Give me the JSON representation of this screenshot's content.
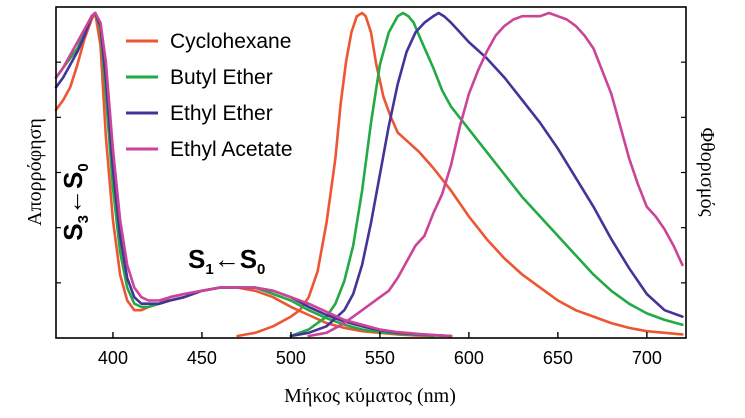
{
  "chart_data": {
    "type": "line",
    "xlabel": "Μήκος κύματος (nm)",
    "ylabel_left": "Απορρόφηση",
    "ylabel_right": "Φθορισμός",
    "xlim": [
      368,
      722
    ],
    "ylim": [
      0,
      1.0
    ],
    "x_ticks": [
      400,
      450,
      500,
      550,
      600,
      650,
      700
    ],
    "grid": false,
    "legend_position": "top-left",
    "annotations": {
      "s3": {
        "main": "S",
        "sub": "3",
        "arrow": "←",
        "main2": "S",
        "sub2": "0"
      },
      "s1": {
        "main": "S",
        "sub": "1",
        "arrow": "←",
        "main2": "S",
        "sub2": "0"
      }
    },
    "series": [
      {
        "name": "Cyclohexane",
        "color": "#ee5533",
        "absorption": {
          "x": [
            368,
            372,
            376,
            380,
            384,
            388,
            390,
            393,
            396,
            400,
            404,
            408,
            412,
            416,
            420,
            426,
            432,
            440,
            450,
            460,
            470,
            480,
            490,
            500,
            510,
            520,
            530,
            540,
            550,
            560,
            570,
            580
          ],
          "y": [
            0.7,
            0.73,
            0.77,
            0.84,
            0.92,
            0.98,
            1.0,
            0.9,
            0.62,
            0.36,
            0.19,
            0.11,
            0.08,
            0.08,
            0.09,
            0.1,
            0.12,
            0.13,
            0.14,
            0.15,
            0.15,
            0.14,
            0.12,
            0.09,
            0.065,
            0.04,
            0.025,
            0.015,
            0.01,
            0.005,
            0.002,
            0.0
          ]
        },
        "fluorescence": {
          "x": [
            470,
            480,
            490,
            500,
            505,
            510,
            515,
            520,
            525,
            528,
            531,
            534,
            537,
            540,
            542,
            545,
            548,
            552,
            556,
            560,
            566,
            572,
            580,
            590,
            600,
            610,
            620,
            630,
            640,
            650,
            660,
            670,
            680,
            690,
            700,
            710,
            720
          ],
          "y": [
            0.0,
            0.01,
            0.03,
            0.06,
            0.08,
            0.12,
            0.2,
            0.35,
            0.55,
            0.72,
            0.85,
            0.94,
            0.99,
            1.0,
            0.99,
            0.94,
            0.84,
            0.74,
            0.68,
            0.63,
            0.6,
            0.57,
            0.52,
            0.45,
            0.37,
            0.3,
            0.24,
            0.19,
            0.15,
            0.11,
            0.08,
            0.06,
            0.04,
            0.025,
            0.015,
            0.01,
            0.005
          ]
        }
      },
      {
        "name": "Butyl Ether",
        "color": "#22aa44",
        "absorption": {
          "x": [
            368,
            372,
            376,
            380,
            384,
            388,
            390,
            393,
            396,
            400,
            404,
            408,
            412,
            416,
            420,
            426,
            432,
            440,
            450,
            460,
            470,
            480,
            490,
            500,
            510,
            520,
            530,
            540,
            550,
            560,
            570,
            580,
            590
          ],
          "y": [
            0.8,
            0.83,
            0.86,
            0.89,
            0.94,
            0.99,
            1.0,
            0.95,
            0.75,
            0.46,
            0.26,
            0.15,
            0.1,
            0.09,
            0.09,
            0.1,
            0.11,
            0.12,
            0.14,
            0.15,
            0.15,
            0.15,
            0.13,
            0.11,
            0.08,
            0.055,
            0.035,
            0.02,
            0.012,
            0.007,
            0.004,
            0.002,
            0.0
          ]
        },
        "fluorescence": {
          "x": [
            500,
            510,
            520,
            525,
            530,
            535,
            540,
            545,
            550,
            555,
            560,
            563,
            566,
            569,
            572,
            576,
            580,
            585,
            590,
            600,
            610,
            620,
            630,
            640,
            650,
            660,
            670,
            680,
            690,
            700,
            710,
            720
          ],
          "y": [
            0.0,
            0.02,
            0.06,
            0.1,
            0.17,
            0.28,
            0.45,
            0.66,
            0.84,
            0.94,
            0.99,
            1.0,
            0.99,
            0.97,
            0.93,
            0.88,
            0.83,
            0.76,
            0.71,
            0.64,
            0.57,
            0.5,
            0.43,
            0.37,
            0.31,
            0.25,
            0.19,
            0.14,
            0.1,
            0.07,
            0.05,
            0.035
          ]
        }
      },
      {
        "name": "Ethyl Ether",
        "color": "#443399",
        "absorption": {
          "x": [
            368,
            372,
            376,
            380,
            384,
            388,
            390,
            393,
            396,
            400,
            404,
            408,
            412,
            416,
            420,
            426,
            432,
            440,
            450,
            460,
            470,
            480,
            490,
            500,
            510,
            520,
            530,
            540,
            550,
            560,
            570,
            580,
            590
          ],
          "y": [
            0.77,
            0.8,
            0.84,
            0.88,
            0.93,
            0.99,
            1.0,
            0.96,
            0.8,
            0.52,
            0.31,
            0.18,
            0.12,
            0.1,
            0.1,
            0.1,
            0.11,
            0.12,
            0.14,
            0.15,
            0.15,
            0.15,
            0.14,
            0.12,
            0.09,
            0.065,
            0.045,
            0.03,
            0.018,
            0.01,
            0.006,
            0.003,
            0.0
          ]
        },
        "fluorescence": {
          "x": [
            500,
            510,
            520,
            530,
            535,
            540,
            545,
            550,
            555,
            560,
            565,
            570,
            575,
            580,
            583,
            586,
            590,
            595,
            600,
            610,
            620,
            630,
            640,
            650,
            660,
            670,
            680,
            690,
            700,
            710,
            720
          ],
          "y": [
            0.0,
            0.01,
            0.03,
            0.08,
            0.13,
            0.22,
            0.35,
            0.5,
            0.65,
            0.78,
            0.88,
            0.94,
            0.97,
            0.99,
            1.0,
            0.99,
            0.97,
            0.94,
            0.91,
            0.86,
            0.8,
            0.73,
            0.66,
            0.58,
            0.49,
            0.4,
            0.3,
            0.21,
            0.13,
            0.08,
            0.06
          ]
        }
      },
      {
        "name": "Ethyl Acetate",
        "color": "#cc4499",
        "absorption": {
          "x": [
            368,
            372,
            376,
            380,
            384,
            388,
            390,
            393,
            396,
            400,
            404,
            408,
            412,
            416,
            420,
            426,
            432,
            440,
            450,
            460,
            470,
            480,
            490,
            500,
            510,
            520,
            530,
            540,
            550,
            560,
            570,
            580,
            590
          ],
          "y": [
            0.8,
            0.83,
            0.87,
            0.91,
            0.95,
            0.99,
            1.0,
            0.97,
            0.85,
            0.58,
            0.36,
            0.22,
            0.15,
            0.12,
            0.11,
            0.11,
            0.12,
            0.13,
            0.14,
            0.15,
            0.15,
            0.15,
            0.14,
            0.12,
            0.1,
            0.075,
            0.05,
            0.035,
            0.02,
            0.012,
            0.007,
            0.003,
            0.0
          ]
        },
        "fluorescence": {
          "x": [
            510,
            520,
            530,
            540,
            545,
            550,
            555,
            560,
            565,
            570,
            575,
            580,
            585,
            590,
            595,
            600,
            605,
            610,
            615,
            620,
            625,
            630,
            635,
            640,
            645,
            650,
            655,
            660,
            665,
            670,
            675,
            680,
            685,
            690,
            695,
            700,
            705,
            710,
            715,
            720
          ],
          "y": [
            0.0,
            0.01,
            0.04,
            0.08,
            0.1,
            0.12,
            0.14,
            0.18,
            0.23,
            0.28,
            0.31,
            0.38,
            0.44,
            0.53,
            0.65,
            0.75,
            0.82,
            0.88,
            0.93,
            0.96,
            0.98,
            0.99,
            0.99,
            0.99,
            1.0,
            0.99,
            0.98,
            0.96,
            0.93,
            0.89,
            0.82,
            0.75,
            0.65,
            0.55,
            0.47,
            0.4,
            0.37,
            0.33,
            0.28,
            0.22
          ]
        }
      }
    ]
  }
}
